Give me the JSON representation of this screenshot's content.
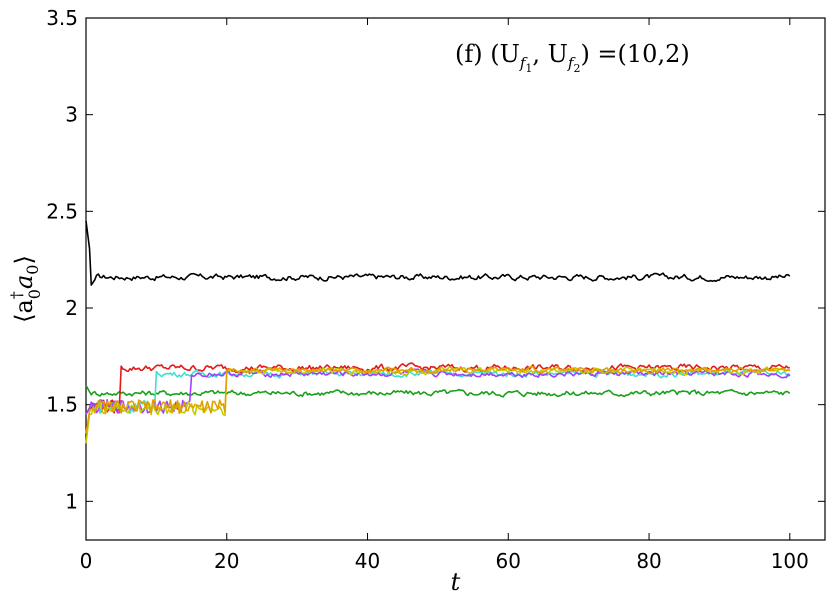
{
  "chart_data": {
    "type": "line",
    "title": "",
    "annotation": "(f) (U_{f1},U_{f2}) =(10,2)",
    "annotation_parts": {
      "prefix": "(f) (U",
      "sub1": "f",
      "sub1b": "1",
      "mid": ", U",
      "sub2": "f",
      "sub2b": "2",
      "suffix": ") =(10,2)"
    },
    "xlabel": "t",
    "ylabel": "⟨a†₀a₀⟩",
    "ylabel_parts": {
      "open": "⟨a",
      "sup": "†",
      "sub": "0",
      "mid": "a",
      "sub2": "0",
      "close": "⟩"
    },
    "xlim": [
      0,
      105
    ],
    "ylim": [
      0.8,
      3.5
    ],
    "xticks": [
      0,
      20,
      40,
      60,
      80,
      100
    ],
    "yticks": [
      1,
      1.5,
      2,
      2.5,
      3,
      3.5
    ],
    "ytick_labels": [
      "1",
      "1.5",
      "2",
      "2.5",
      "3",
      "3.5"
    ],
    "xtick_labels": [
      "0",
      "20",
      "40",
      "60",
      "80",
      "100"
    ],
    "grid": false,
    "series": [
      {
        "color": "#000000",
        "switch_t": 0,
        "start": 2.45,
        "level": 2.16,
        "pre": null,
        "amp": 0.012
      },
      {
        "color": "#1aa01a",
        "switch_t": 0,
        "start": 1.6,
        "level": 1.56,
        "pre": null,
        "amp": 0.012
      },
      {
        "color": "#e31a1a",
        "switch_t": 5,
        "start": 1.45,
        "level": 1.69,
        "pre": 1.49,
        "amp": 0.014
      },
      {
        "color": "#40e0d0",
        "switch_t": 10,
        "start": 1.45,
        "level": 1.66,
        "pre": 1.49,
        "amp": 0.012
      },
      {
        "color": "#a040ff",
        "switch_t": 15,
        "start": 1.45,
        "level": 1.66,
        "pre": 1.49,
        "amp": 0.012
      },
      {
        "color": "#c8c800",
        "switch_t": 20,
        "start": 1.3,
        "level": 1.675,
        "pre": 1.48,
        "amp": 0.012
      },
      {
        "color": "#e0a000",
        "switch_t": 20,
        "start": 1.35,
        "level": 1.68,
        "pre": 1.49,
        "amp": 0.01
      }
    ]
  }
}
